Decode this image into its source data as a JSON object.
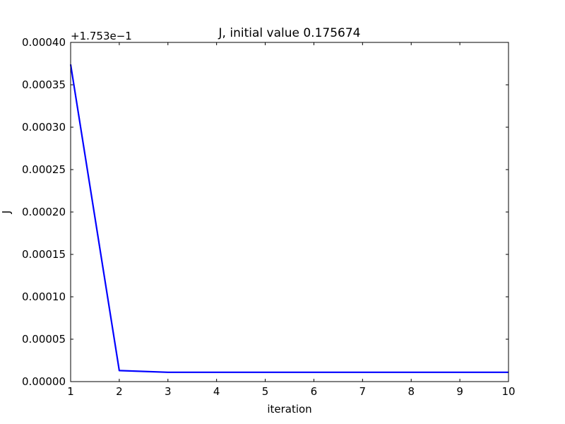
{
  "chart_data": {
    "type": "line",
    "title": "J, initial value 0.175674",
    "xlabel": "iteration",
    "ylabel": "J",
    "offset_label": "+1.753e−1",
    "xlim": [
      1,
      10
    ],
    "ylim": [
      0.0,
      0.0004
    ],
    "xticks": [
      "1",
      "2",
      "3",
      "4",
      "5",
      "6",
      "7",
      "8",
      "9",
      "10"
    ],
    "yticks": [
      "0.00000",
      "0.00005",
      "0.00010",
      "0.00015",
      "0.00020",
      "0.00025",
      "0.00030",
      "0.00035",
      "0.00040"
    ],
    "grid": false,
    "series": [
      {
        "color": "#0000ff",
        "x": [
          1,
          2,
          3,
          4,
          5,
          6,
          7,
          8,
          9,
          10
        ],
        "y": [
          0.000374,
          1.3e-05,
          1.1e-05,
          1.1e-05,
          1.1e-05,
          1.1e-05,
          1.1e-05,
          1.1e-05,
          1.1e-05,
          1.1e-05
        ]
      }
    ]
  }
}
